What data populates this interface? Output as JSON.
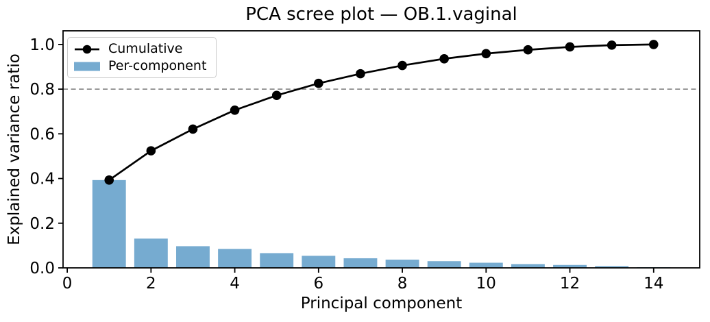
{
  "figure": {
    "title": "PCA scree plot — OB.1.vaginal",
    "xlabel": "Principal component",
    "ylabel": "Explained variance ratio"
  },
  "legend": {
    "position": "upper-left",
    "items": [
      {
        "label": "Cumulative",
        "swatch": "line-with-circle-marker",
        "color": "#000000"
      },
      {
        "label": "Per-component",
        "swatch": "filled-patch",
        "color": "#76abd0"
      }
    ]
  },
  "chart_data": {
    "type": "bar",
    "title": "PCA scree plot — OB.1.vaginal",
    "xlabel": "Principal component",
    "ylabel": "Explained variance ratio",
    "categories": [
      1,
      2,
      3,
      4,
      5,
      6,
      7,
      8,
      9,
      10,
      11,
      12,
      13,
      14
    ],
    "series": [
      {
        "name": "Per-component",
        "type": "bar",
        "color": "#76abd0",
        "values": [
          0.393,
          0.131,
          0.097,
          0.085,
          0.066,
          0.054,
          0.043,
          0.037,
          0.03,
          0.023,
          0.017,
          0.013,
          0.008,
          0.003
        ]
      },
      {
        "name": "Cumulative",
        "type": "line",
        "color": "#000000",
        "marker": "circle",
        "values": [
          0.393,
          0.524,
          0.621,
          0.706,
          0.772,
          0.826,
          0.869,
          0.906,
          0.936,
          0.959,
          0.976,
          0.989,
          0.997,
          1.0
        ]
      }
    ],
    "threshold_line": {
      "y": 0.8,
      "style": "dashed",
      "color": "#8c8c8c"
    },
    "bar_width": 0.8,
    "xlim": [
      -0.1,
      15.1
    ],
    "ylim": [
      0,
      1.061
    ],
    "xtick_values": [
      0,
      2,
      4,
      6,
      8,
      10,
      12,
      14
    ],
    "xtick_labels": [
      "0",
      "2",
      "4",
      "6",
      "8",
      "10",
      "12",
      "14"
    ],
    "ytick_values": [
      0.0,
      0.2,
      0.4,
      0.6,
      0.8,
      1.0
    ],
    "ytick_labels": [
      "0.0",
      "0.2",
      "0.4",
      "0.6",
      "0.8",
      "1.0"
    ],
    "grid": false,
    "legend_position": "upper left"
  }
}
